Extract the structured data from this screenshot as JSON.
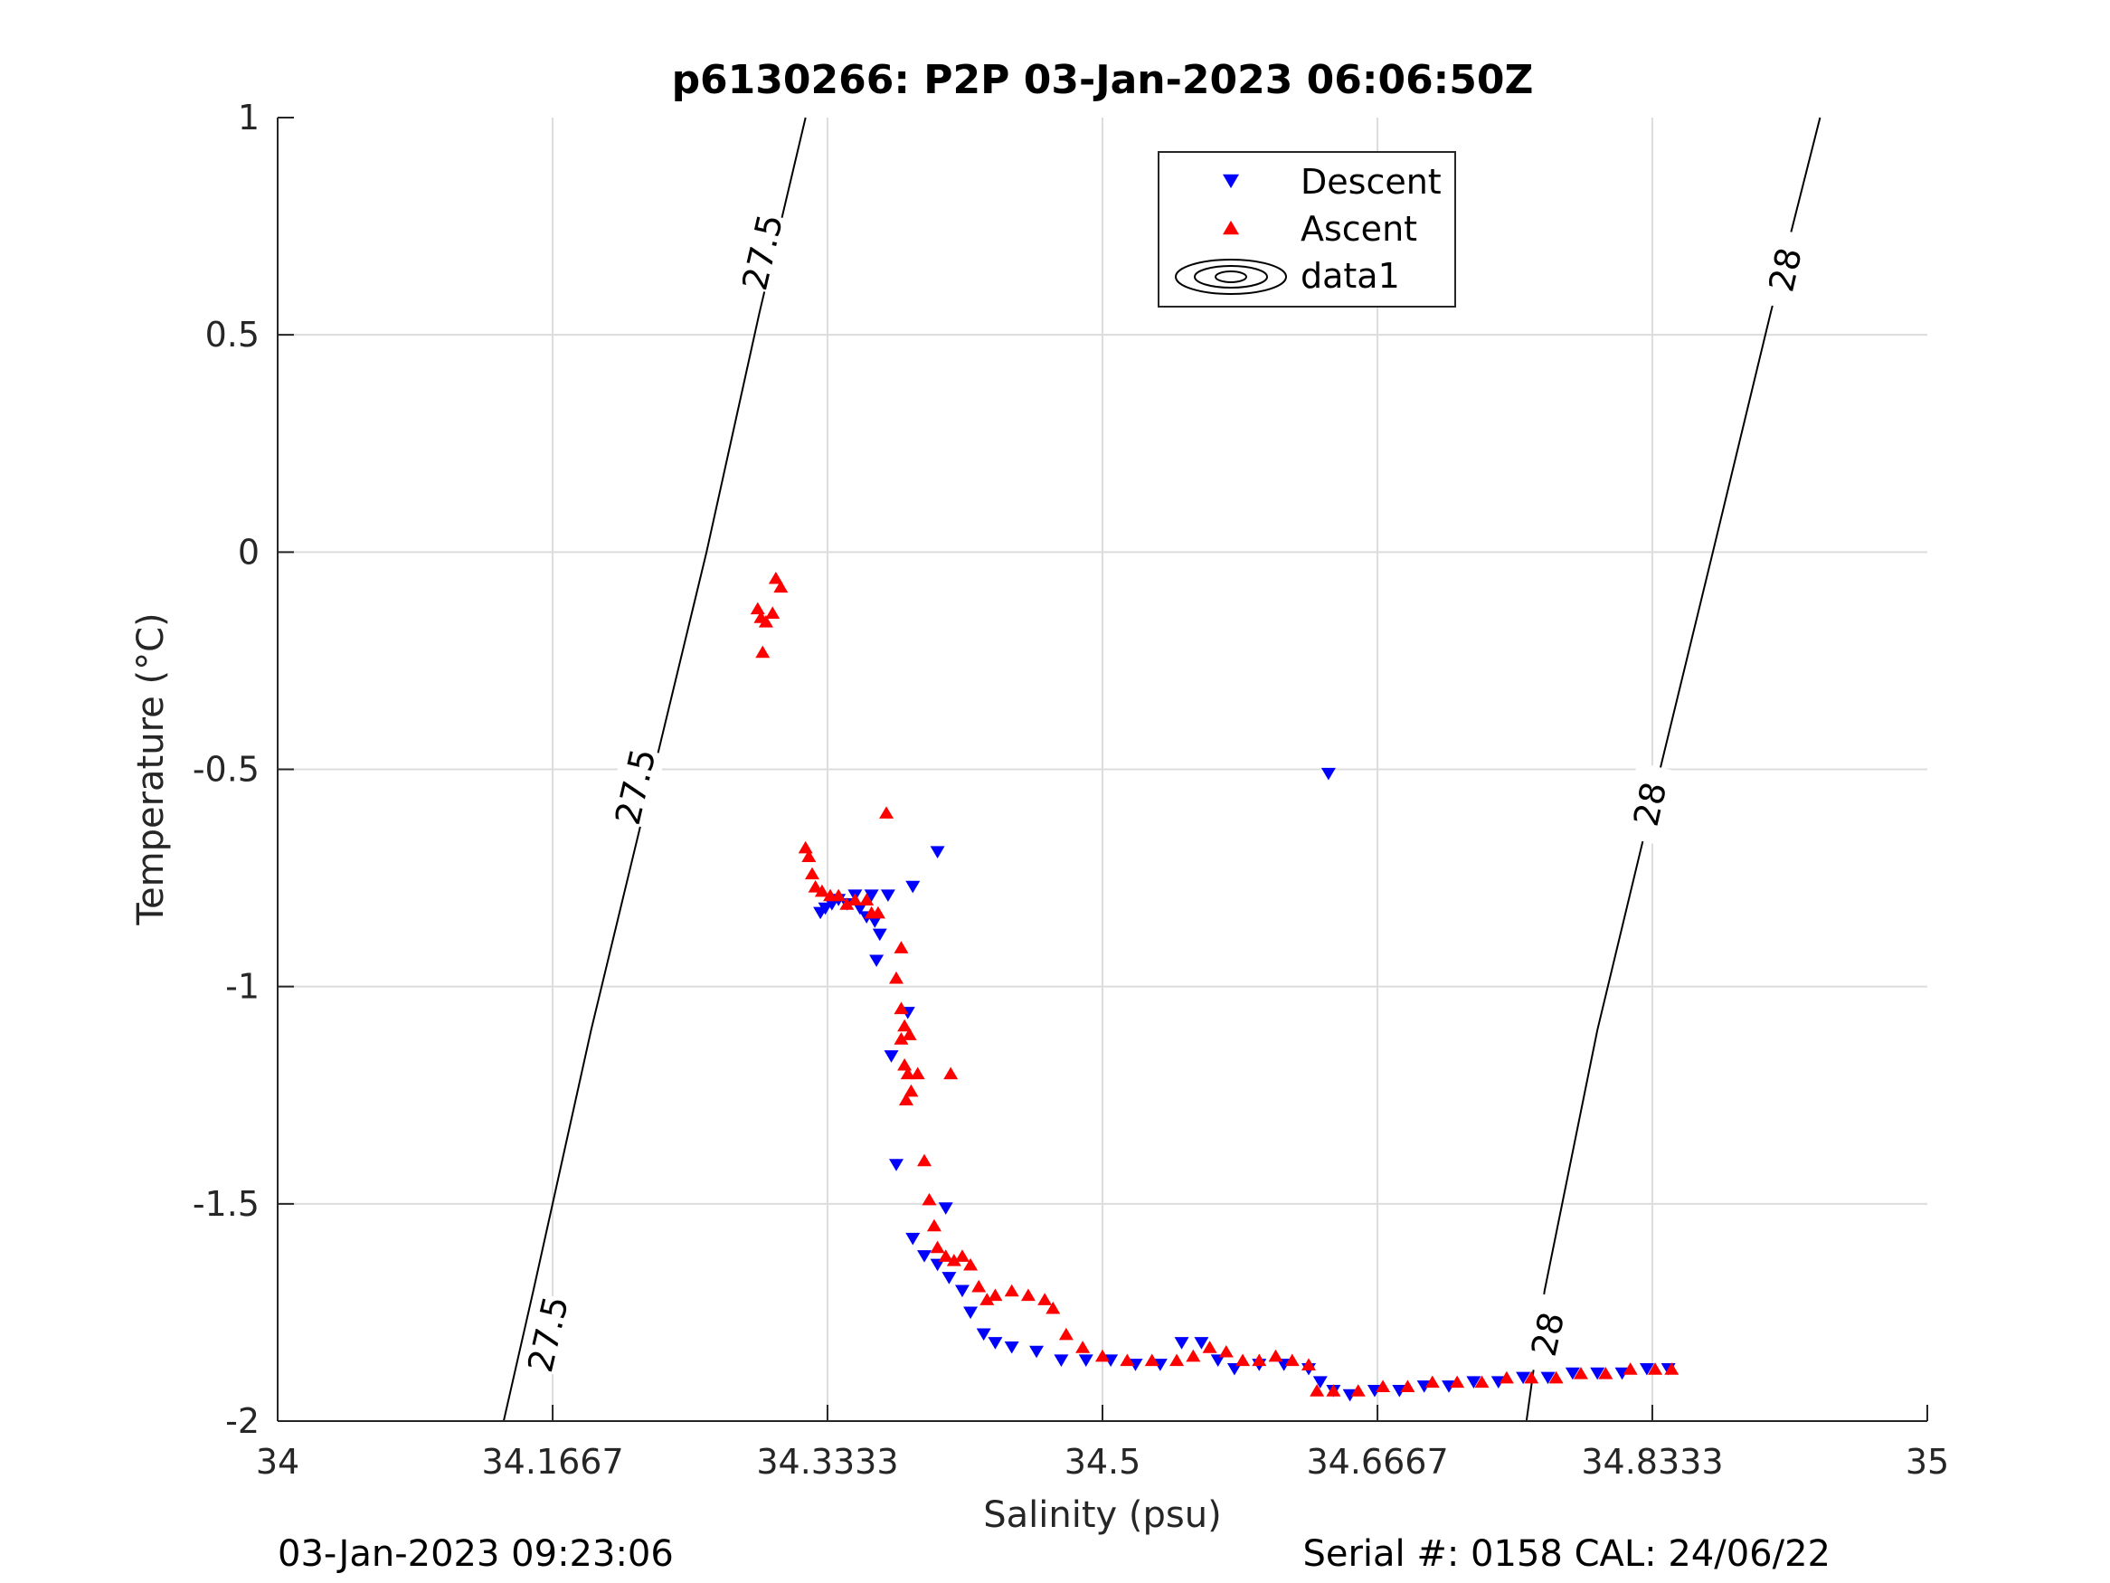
{
  "chart_data": {
    "type": "scatter",
    "title": "p6130266: P2P 03-Jan-2023 06:06:50Z",
    "xlabel": "Salinity (psu)",
    "ylabel": "Temperature (°C)",
    "xlim": [
      34,
      35
    ],
    "ylim": [
      -2,
      1
    ],
    "x_ticks": [
      34,
      34.1667,
      34.3333,
      34.5,
      34.6667,
      34.8333,
      35
    ],
    "x_tick_labels": [
      "34",
      "34.1667",
      "34.3333",
      "34.5",
      "34.6667",
      "34.8333",
      "35"
    ],
    "y_ticks": [
      -2,
      -1.5,
      -1,
      -0.5,
      0,
      0.5,
      1
    ],
    "y_tick_labels": [
      "-2",
      "-1.5",
      "-1",
      "-0.5",
      "0",
      "0.5",
      "1"
    ],
    "grid": true,
    "legend_position": "top-center",
    "colors": {
      "descent": "#0000ff",
      "ascent": "#ff0000",
      "contour": "#000000",
      "grid": "#dcdcdc"
    },
    "series": [
      {
        "name": "Descent",
        "marker": "triangle-down",
        "color": "#0000ff",
        "points": [
          [
            34.329,
            -0.83
          ],
          [
            34.332,
            -0.82
          ],
          [
            34.336,
            -0.81
          ],
          [
            34.34,
            -0.8
          ],
          [
            34.345,
            -0.81
          ],
          [
            34.35,
            -0.79
          ],
          [
            34.353,
            -0.82
          ],
          [
            34.357,
            -0.84
          ],
          [
            34.36,
            -0.79
          ],
          [
            34.362,
            -0.85
          ],
          [
            34.365,
            -0.88
          ],
          [
            34.37,
            -0.79
          ],
          [
            34.363,
            -0.94
          ],
          [
            34.4,
            -0.69
          ],
          [
            34.385,
            -0.77
          ],
          [
            34.382,
            -1.06
          ],
          [
            34.372,
            -1.16
          ],
          [
            34.375,
            -1.41
          ],
          [
            34.405,
            -1.51
          ],
          [
            34.385,
            -1.58
          ],
          [
            34.392,
            -1.62
          ],
          [
            34.4,
            -1.64
          ],
          [
            34.407,
            -1.67
          ],
          [
            34.415,
            -1.7
          ],
          [
            34.42,
            -1.75
          ],
          [
            34.428,
            -1.8
          ],
          [
            34.435,
            -1.82
          ],
          [
            34.445,
            -1.83
          ],
          [
            34.46,
            -1.84
          ],
          [
            34.475,
            -1.86
          ],
          [
            34.49,
            -1.86
          ],
          [
            34.505,
            -1.86
          ],
          [
            34.52,
            -1.87
          ],
          [
            34.535,
            -1.87
          ],
          [
            34.548,
            -1.82
          ],
          [
            34.56,
            -1.82
          ],
          [
            34.57,
            -1.86
          ],
          [
            34.58,
            -1.88
          ],
          [
            34.595,
            -1.87
          ],
          [
            34.61,
            -1.87
          ],
          [
            34.625,
            -1.88
          ],
          [
            34.632,
            -1.91
          ],
          [
            34.64,
            -1.93
          ],
          [
            34.65,
            -1.94
          ],
          [
            34.665,
            -1.93
          ],
          [
            34.68,
            -1.93
          ],
          [
            34.695,
            -1.92
          ],
          [
            34.71,
            -1.92
          ],
          [
            34.725,
            -1.91
          ],
          [
            34.74,
            -1.91
          ],
          [
            34.755,
            -1.9
          ],
          [
            34.77,
            -1.9
          ],
          [
            34.785,
            -1.89
          ],
          [
            34.8,
            -1.89
          ],
          [
            34.815,
            -1.89
          ],
          [
            34.83,
            -1.88
          ],
          [
            34.843,
            -1.88
          ],
          [
            34.637,
            -0.51
          ]
        ]
      },
      {
        "name": "Ascent",
        "marker": "triangle-up",
        "color": "#ff0000",
        "points": [
          [
            34.291,
            -0.13
          ],
          [
            34.293,
            -0.15
          ],
          [
            34.296,
            -0.16
          ],
          [
            34.294,
            -0.23
          ],
          [
            34.3,
            -0.14
          ],
          [
            34.305,
            -0.08
          ],
          [
            34.302,
            -0.06
          ],
          [
            34.32,
            -0.68
          ],
          [
            34.322,
            -0.7
          ],
          [
            34.324,
            -0.74
          ],
          [
            34.326,
            -0.77
          ],
          [
            34.33,
            -0.78
          ],
          [
            34.335,
            -0.79
          ],
          [
            34.34,
            -0.79
          ],
          [
            34.345,
            -0.81
          ],
          [
            34.35,
            -0.8
          ],
          [
            34.357,
            -0.8
          ],
          [
            34.36,
            -0.83
          ],
          [
            34.364,
            -0.83
          ],
          [
            34.369,
            -0.6
          ],
          [
            34.378,
            -0.91
          ],
          [
            34.375,
            -0.98
          ],
          [
            34.378,
            -1.05
          ],
          [
            34.38,
            -1.09
          ],
          [
            34.383,
            -1.11
          ],
          [
            34.378,
            -1.12
          ],
          [
            34.38,
            -1.18
          ],
          [
            34.382,
            -1.2
          ],
          [
            34.384,
            -1.24
          ],
          [
            34.381,
            -1.26
          ],
          [
            34.388,
            -1.2
          ],
          [
            34.408,
            -1.2
          ],
          [
            34.392,
            -1.4
          ],
          [
            34.395,
            -1.49
          ],
          [
            34.398,
            -1.55
          ],
          [
            34.4,
            -1.6
          ],
          [
            34.405,
            -1.62
          ],
          [
            34.41,
            -1.63
          ],
          [
            34.415,
            -1.62
          ],
          [
            34.42,
            -1.64
          ],
          [
            34.425,
            -1.69
          ],
          [
            34.43,
            -1.72
          ],
          [
            34.435,
            -1.71
          ],
          [
            34.445,
            -1.7
          ],
          [
            34.455,
            -1.71
          ],
          [
            34.465,
            -1.72
          ],
          [
            34.47,
            -1.74
          ],
          [
            34.478,
            -1.8
          ],
          [
            34.488,
            -1.83
          ],
          [
            34.5,
            -1.85
          ],
          [
            34.515,
            -1.86
          ],
          [
            34.53,
            -1.86
          ],
          [
            34.545,
            -1.86
          ],
          [
            34.555,
            -1.85
          ],
          [
            34.565,
            -1.83
          ],
          [
            34.575,
            -1.84
          ],
          [
            34.585,
            -1.86
          ],
          [
            34.595,
            -1.86
          ],
          [
            34.605,
            -1.85
          ],
          [
            34.615,
            -1.86
          ],
          [
            34.625,
            -1.87
          ],
          [
            34.63,
            -1.93
          ],
          [
            34.64,
            -1.93
          ],
          [
            34.655,
            -1.93
          ],
          [
            34.67,
            -1.92
          ],
          [
            34.685,
            -1.92
          ],
          [
            34.7,
            -1.91
          ],
          [
            34.715,
            -1.91
          ],
          [
            34.73,
            -1.91
          ],
          [
            34.745,
            -1.9
          ],
          [
            34.76,
            -1.9
          ],
          [
            34.775,
            -1.9
          ],
          [
            34.79,
            -1.89
          ],
          [
            34.805,
            -1.89
          ],
          [
            34.82,
            -1.88
          ],
          [
            34.835,
            -1.88
          ],
          [
            34.845,
            -1.88
          ]
        ]
      },
      {
        "name": "data1",
        "kind": "contour",
        "color": "#000000",
        "levels": [
          {
            "label": "27.5",
            "label_positions": [
              [
                34.294,
                0.69
              ],
              [
                34.217,
                -0.54
              ],
              [
                34.164,
                -1.8
              ]
            ],
            "points": [
              [
                34.32,
                1.0
              ],
              [
                34.292,
                0.55
              ],
              [
                34.26,
                0.0
              ],
              [
                34.225,
                -0.55
              ],
              [
                34.19,
                -1.1
              ],
              [
                34.155,
                -1.7
              ],
              [
                34.137,
                -2.0
              ]
            ]
          },
          {
            "label": "28",
            "label_positions": [
              [
                34.914,
                0.65
              ],
              [
                34.832,
                -0.58
              ],
              [
                34.77,
                -1.8
              ]
            ],
            "points": [
              [
                34.935,
                1.0
              ],
              [
                34.905,
                0.55
              ],
              [
                34.87,
                0.0
              ],
              [
                34.838,
                -0.5
              ],
              [
                34.8,
                -1.1
              ],
              [
                34.768,
                -1.7
              ],
              [
                34.757,
                -2.0
              ]
            ]
          }
        ]
      }
    ]
  },
  "footer": {
    "timestamp": "03-Jan-2023 09:23:06",
    "serial": "Serial #: 0158  CAL: 24/06/22"
  }
}
